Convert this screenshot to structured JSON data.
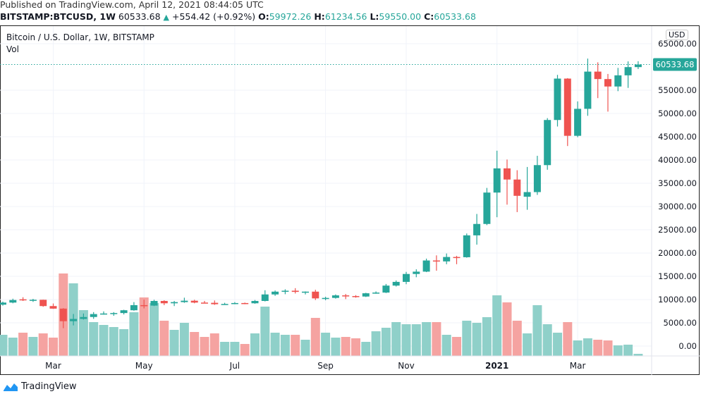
{
  "header": {
    "published": "Published on TradingView.com, April 12, 2021 08:44:05 UTC",
    "symbol": "BITSTAMP:BTCUSD, 1W",
    "last": "60533.68",
    "change": "+554.42 (+0.92%)",
    "o_label": "O:",
    "o": "59972.26",
    "h_label": "H:",
    "h": "61234.56",
    "l_label": "L:",
    "l": "59550.00",
    "c_label": "C:",
    "c": "60533.68"
  },
  "legend": {
    "title": "Bitcoin / U.S. Dollar, 1W, BITSTAMP",
    "vol": "Vol"
  },
  "currency_button": "USD",
  "brand": "TradingView",
  "colors": {
    "up": "#26a69a",
    "down": "#ef5350",
    "up_volume": "#8fd0c9",
    "down_volume": "#f5a3a1",
    "grid": "#f0f3fa"
  },
  "chart_data": {
    "type": "candlestick",
    "title": "Bitcoin / U.S. Dollar, 1W, BITSTAMP",
    "ylim": [
      0,
      65000
    ],
    "y_ticks": [
      "65000.00",
      "55000.00",
      "50000.00",
      "45000.00",
      "40000.00",
      "35000.00",
      "30000.00",
      "25000.00",
      "20000.00",
      "15000.00",
      "10000.00",
      "5000.00",
      "0.00"
    ],
    "y_tick_values": [
      65000,
      55000,
      50000,
      45000,
      40000,
      35000,
      30000,
      25000,
      20000,
      15000,
      10000,
      5000,
      0
    ],
    "last_price_label": "60533.68",
    "last_price": 60533.68,
    "x_ticks": [
      {
        "label": "Mar",
        "date": "2020-03-02"
      },
      {
        "label": "May",
        "date": "2020-05-04"
      },
      {
        "label": "Jul",
        "date": "2020-07-06"
      },
      {
        "label": "Sep",
        "date": "2020-09-07"
      },
      {
        "label": "Nov",
        "date": "2020-11-02"
      },
      {
        "label": "2021",
        "date": "2021-01-04"
      },
      {
        "label": "Mar",
        "date": "2021-03-01"
      }
    ],
    "grid": true,
    "candle_fields": [
      "date",
      "open",
      "high",
      "low",
      "close",
      "volume_relative"
    ],
    "candles": [
      [
        "2020-01-27",
        8900,
        9550,
        8700,
        9350,
        30
      ],
      [
        "2020-02-03",
        9350,
        10180,
        9200,
        9900,
        26
      ],
      [
        "2020-02-10",
        10050,
        10500,
        9700,
        9900,
        33
      ],
      [
        "2020-02-17",
        9900,
        10150,
        9500,
        9950,
        27
      ],
      [
        "2020-02-24",
        9950,
        9980,
        8450,
        8600,
        32
      ],
      [
        "2020-03-02",
        8600,
        9150,
        8000,
        8050,
        26
      ],
      [
        "2020-03-09",
        8050,
        8150,
        3850,
        5350,
        117
      ],
      [
        "2020-03-16",
        5350,
        6900,
        4450,
        5830,
        103
      ],
      [
        "2020-03-23",
        5830,
        7000,
        5700,
        6250,
        65
      ],
      [
        "2020-03-30",
        6250,
        7300,
        5850,
        6880,
        48
      ],
      [
        "2020-04-06",
        6880,
        7450,
        6750,
        7000,
        44
      ],
      [
        "2020-04-13",
        7000,
        7300,
        6500,
        7100,
        41
      ],
      [
        "2020-04-20",
        7100,
        7800,
        6800,
        7700,
        38
      ],
      [
        "2020-04-27",
        7700,
        9450,
        7600,
        8800,
        62
      ],
      [
        "2020-05-04",
        8800,
        10000,
        8100,
        8700,
        83
      ],
      [
        "2020-05-11",
        8700,
        9950,
        8600,
        9700,
        75
      ],
      [
        "2020-05-18",
        9700,
        9850,
        8800,
        9200,
        50
      ],
      [
        "2020-05-25",
        9200,
        9700,
        8600,
        9450,
        37
      ],
      [
        "2020-06-01",
        9450,
        10400,
        9300,
        9750,
        47
      ],
      [
        "2020-06-08",
        9750,
        9950,
        9200,
        9350,
        34
      ],
      [
        "2020-06-15",
        9350,
        9700,
        9200,
        9300,
        27
      ],
      [
        "2020-06-22",
        9300,
        9800,
        8850,
        9000,
        32
      ],
      [
        "2020-06-29",
        9000,
        9300,
        8950,
        9050,
        20
      ],
      [
        "2020-07-06",
        9050,
        9450,
        9000,
        9250,
        20
      ],
      [
        "2020-07-13",
        9250,
        9350,
        9000,
        9200,
        17
      ],
      [
        "2020-07-20",
        9200,
        9900,
        9100,
        9700,
        32
      ],
      [
        "2020-07-27",
        9700,
        12000,
        9600,
        11100,
        70
      ],
      [
        "2020-08-03",
        11100,
        11950,
        10800,
        11700,
        33
      ],
      [
        "2020-08-10",
        11700,
        12200,
        11150,
        11900,
        30
      ],
      [
        "2020-08-17",
        11900,
        12450,
        11300,
        11650,
        30
      ],
      [
        "2020-08-24",
        11650,
        11750,
        11100,
        11700,
        23
      ],
      [
        "2020-08-31",
        11700,
        12100,
        9900,
        10250,
        54
      ],
      [
        "2020-09-07",
        10250,
        10600,
        9850,
        10350,
        33
      ],
      [
        "2020-09-14",
        10350,
        11100,
        10200,
        10900,
        26
      ],
      [
        "2020-09-21",
        10900,
        11200,
        10100,
        10750,
        27
      ],
      [
        "2020-09-28",
        10750,
        10950,
        10400,
        10650,
        25
      ],
      [
        "2020-10-05",
        10650,
        11450,
        10550,
        11350,
        20
      ],
      [
        "2020-10-12",
        11350,
        11750,
        11250,
        11500,
        35
      ],
      [
        "2020-10-19",
        11500,
        13350,
        11400,
        13000,
        40
      ],
      [
        "2020-10-26",
        13000,
        14100,
        12800,
        13800,
        48
      ],
      [
        "2020-11-02",
        13800,
        15950,
        13300,
        15500,
        45
      ],
      [
        "2020-11-09",
        15500,
        16500,
        14800,
        16000,
        45
      ],
      [
        "2020-11-16",
        16000,
        18800,
        15900,
        18400,
        48
      ],
      [
        "2020-11-23",
        18400,
        19500,
        16200,
        18200,
        48
      ],
      [
        "2020-11-30",
        18200,
        19900,
        17600,
        19150,
        30
      ],
      [
        "2020-12-07",
        19150,
        19400,
        17600,
        19100,
        27
      ],
      [
        "2020-12-14",
        19100,
        24200,
        19000,
        23800,
        50
      ],
      [
        "2020-12-21",
        23800,
        28400,
        21800,
        26250,
        47
      ],
      [
        "2020-12-28",
        26250,
        34000,
        26000,
        33000,
        55
      ],
      [
        "2021-01-04",
        33000,
        42000,
        27700,
        38200,
        86
      ],
      [
        "2021-01-11",
        38200,
        40100,
        30400,
        35800,
        76
      ],
      [
        "2021-01-18",
        35800,
        37800,
        28800,
        32300,
        50
      ],
      [
        "2021-01-25",
        32100,
        38500,
        29300,
        33100,
        32
      ],
      [
        "2021-02-01",
        33100,
        40900,
        32500,
        38900,
        72
      ],
      [
        "2021-02-08",
        38900,
        49000,
        37900,
        48600,
        45
      ],
      [
        "2021-02-15",
        48600,
        58300,
        47200,
        57500,
        33
      ],
      [
        "2021-02-22",
        57500,
        57600,
        43000,
        45200,
        48
      ],
      [
        "2021-03-01",
        45200,
        52600,
        44900,
        51000,
        22
      ],
      [
        "2021-03-08",
        51000,
        61800,
        49500,
        59000,
        25
      ],
      [
        "2021-03-15",
        59000,
        61000,
        53300,
        57400,
        23
      ],
      [
        "2021-03-22",
        57400,
        58500,
        50400,
        55800,
        22
      ],
      [
        "2021-03-29",
        55800,
        59800,
        54800,
        58200,
        15
      ],
      [
        "2021-04-05",
        58200,
        61200,
        55500,
        59972,
        16
      ],
      [
        "2021-04-12",
        59972.26,
        61234.56,
        59550,
        60533.68,
        3
      ]
    ]
  }
}
